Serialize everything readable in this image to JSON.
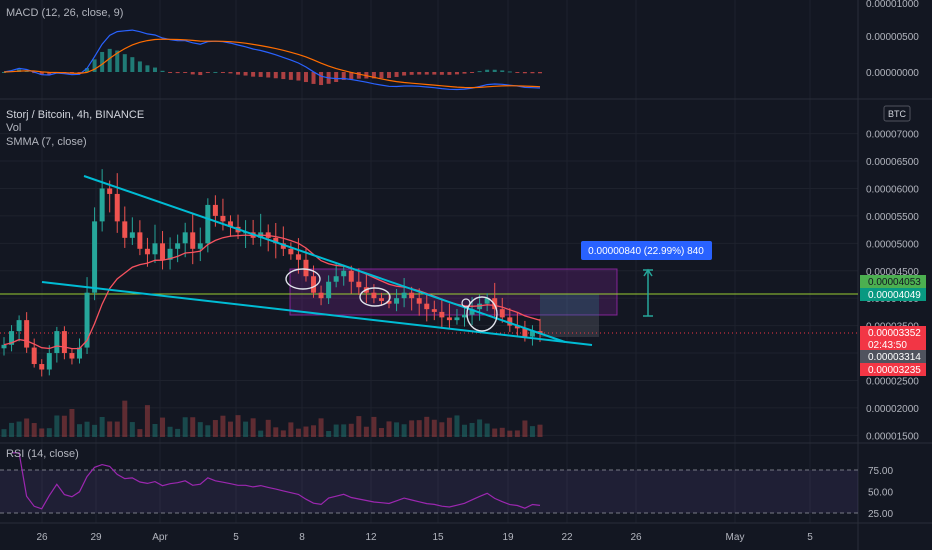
{
  "header": {
    "symbol": "Storj / Bitcoin, 4h, BINANCE",
    "vol_label": "Vol",
    "smma_label": "SMMA (7, close)",
    "currency": "BTC"
  },
  "macd_pane": {
    "label": "MACD (12, 26, close, 9)",
    "ticks": [
      "0.00001000",
      "0.00000500",
      "0.00000000"
    ]
  },
  "rsi_pane": {
    "label": "RSI (14, close)",
    "ticks": [
      "75.00",
      "50.00",
      "25.00"
    ]
  },
  "measure_tooltip": "0.00000840 (22.99%) 840",
  "price_tags": [
    {
      "text": "0.00004053",
      "bg": "#4caf50",
      "fg": "#131722"
    },
    {
      "text": "0.00004049",
      "bg": "#089981",
      "fg": "#ffffff"
    },
    {
      "text": "0.00003352",
      "bg": "#f23645",
      "fg": "#ffffff"
    },
    {
      "text": "02:43:50",
      "bg": "#f23645",
      "fg": "#ffffff"
    },
    {
      "text": "0.00003314",
      "bg": "#50535e",
      "fg": "#ffffff"
    },
    {
      "text": "0.00003235",
      "bg": "#f23645",
      "fg": "#ffffff"
    }
  ],
  "colors": {
    "background": "#131722",
    "up": "#26a69a",
    "down": "#ef5350",
    "trendline": "#00bcd4",
    "smma": "#f7525f",
    "rsi": "#9c27b0",
    "macd": "#2962ff",
    "signal": "#ff6d00",
    "horizontal_line": "#9acd32",
    "zone": "#9c27b0"
  },
  "chart_data": {
    "type": "candlestick",
    "x_ticks": [
      "26",
      "29",
      "Apr",
      "5",
      "8",
      "12",
      "15",
      "19",
      "22",
      "26",
      "May",
      "5"
    ],
    "y_ticks": [
      "0.00007000",
      "0.00006500",
      "0.00006000",
      "0.00005500",
      "0.00005000",
      "0.00004500",
      "0.00004000",
      "0.00003500",
      "0.00003000",
      "0.00002500",
      "0.00002000",
      "0.00001500"
    ],
    "ylim": [
      1.47e-05,
      7.12e-05
    ],
    "horizontal_level": 4.049e-05,
    "zone": {
      "low": 3.68e-05,
      "high": 4.5e-05
    },
    "trendlines": [
      {
        "from": [
          6.15e-05,
          6.15e-05
        ],
        "note": "upper wedge"
      }
    ],
    "close_series": [
      3.15e-05,
      3.4e-05,
      3.6e-05,
      3.1e-05,
      2.8e-05,
      2.7e-05,
      3e-05,
      3.4e-05,
      3e-05,
      2.9e-05,
      3.1e-05,
      4.1e-05,
      5.4e-05,
      6e-05,
      5.9e-05,
      5.4e-05,
      5.1e-05,
      5.2e-05,
      4.9e-05,
      4.8e-05,
      5e-05,
      4.7e-05,
      4.9e-05,
      5e-05,
      5.2e-05,
      4.9e-05,
      5e-05,
      5.7e-05,
      5.5e-05,
      5.4e-05,
      5.3e-05,
      5.2e-05,
      5.2e-05,
      5.1e-05,
      5.2e-05,
      5.1e-05,
      5e-05,
      4.9e-05,
      4.8e-05,
      4.7e-05,
      4.4e-05,
      4.1e-05,
      4e-05,
      4.3e-05,
      4.4e-05,
      4.5e-05,
      4.3e-05,
      4.2e-05,
      4.1e-05,
      4e-05,
      3.95e-05,
      3.9e-05,
      4e-05,
      4.1e-05,
      4e-05,
      3.9e-05,
      3.8e-05,
      3.75e-05,
      3.65e-05,
      3.6e-05,
      3.65e-05,
      3.7e-05,
      3.8e-05,
      3.9e-05,
      4e-05,
      3.8e-05,
      3.65e-05,
      3.5e-05,
      3.45e-05,
      3.3e-05,
      3.4e-05,
      3.352e-05
    ]
  }
}
